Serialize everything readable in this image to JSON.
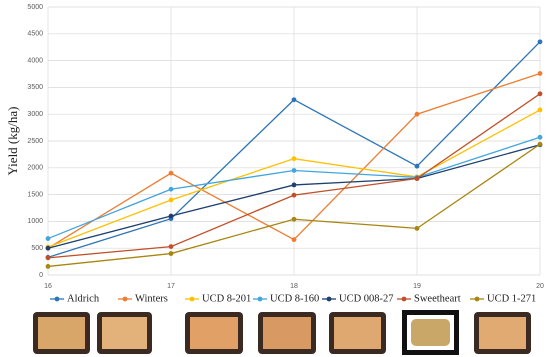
{
  "chart_data": {
    "type": "line",
    "y_label": "Yield (kg/ha)",
    "x": [
      16,
      17,
      18,
      19,
      20
    ],
    "xlim": [
      16,
      20
    ],
    "xticks": [
      16,
      17,
      18,
      19,
      20
    ],
    "ylim": [
      0,
      5000
    ],
    "yticks": [
      0,
      500,
      1000,
      1500,
      2000,
      2500,
      3000,
      3500,
      4000,
      4500,
      5000
    ],
    "grid": true,
    "legend": "bottom",
    "series": [
      {
        "name": "Aldrich",
        "color": "#2e75b6",
        "values": [
          330,
          1050,
          3270,
          2030,
          4350
        ]
      },
      {
        "name": "Winters",
        "color": "#ed7d31",
        "values": [
          500,
          1900,
          660,
          3000,
          3760
        ]
      },
      {
        "name": "UCD 8-201",
        "color": "#ffc000",
        "values": [
          520,
          1400,
          2170,
          1830,
          3080
        ]
      },
      {
        "name": "UCD 8-160",
        "color": "#41a5de",
        "values": [
          680,
          1600,
          1950,
          1820,
          2570
        ]
      },
      {
        "name": "UCD 008-27",
        "color": "#1f3f6e",
        "values": [
          500,
          1100,
          1680,
          1800,
          2430
        ]
      },
      {
        "name": "Sweetheart",
        "color": "#c0502a",
        "values": [
          320,
          530,
          1490,
          1800,
          3380
        ]
      },
      {
        "name": "UCD 1-271",
        "color": "#a8860f",
        "values": [
          160,
          400,
          1040,
          870,
          2440
        ]
      }
    ]
  }
}
